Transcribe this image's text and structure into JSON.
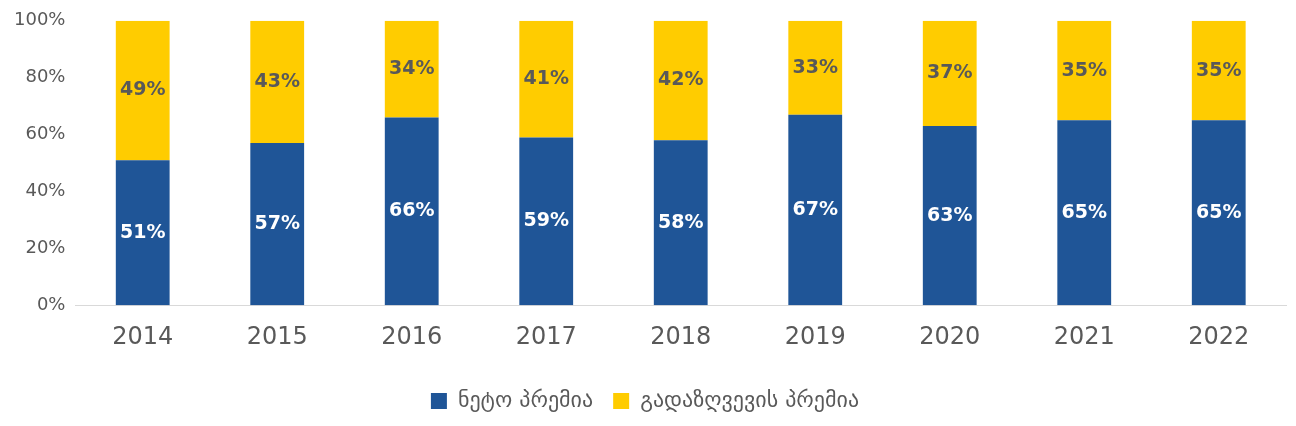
{
  "chart_data": {
    "type": "bar",
    "stacked": true,
    "categories": [
      "2014",
      "2015",
      "2016",
      "2017",
      "2018",
      "2019",
      "2020",
      "2021",
      "2022"
    ],
    "series": [
      {
        "name": "ნეტო პრემია",
        "color": "#1f5597",
        "values": [
          51,
          57,
          66,
          59,
          58,
          67,
          63,
          65,
          65
        ],
        "value_labels": [
          "51%",
          "57%",
          "66%",
          "59%",
          "58%",
          "67%",
          "63%",
          "65%",
          "65%"
        ]
      },
      {
        "name": "გადაზღვევის პრემია",
        "color": "#ffcc00",
        "values": [
          49,
          43,
          34,
          41,
          42,
          33,
          37,
          35,
          35
        ],
        "value_labels": [
          "49%",
          "43%",
          "34%",
          "41%",
          "42%",
          "33%",
          "37%",
          "35%",
          "35%"
        ]
      }
    ],
    "ylim": [
      0,
      100
    ],
    "yticks": [
      {
        "value": 0,
        "label": "0%"
      },
      {
        "value": 20,
        "label": "20%"
      },
      {
        "value": 40,
        "label": "40%"
      },
      {
        "value": 60,
        "label": "60%"
      },
      {
        "value": 80,
        "label": "80%"
      },
      {
        "value": 100,
        "label": "100%"
      }
    ],
    "grid": false,
    "legend": "bottom"
  }
}
